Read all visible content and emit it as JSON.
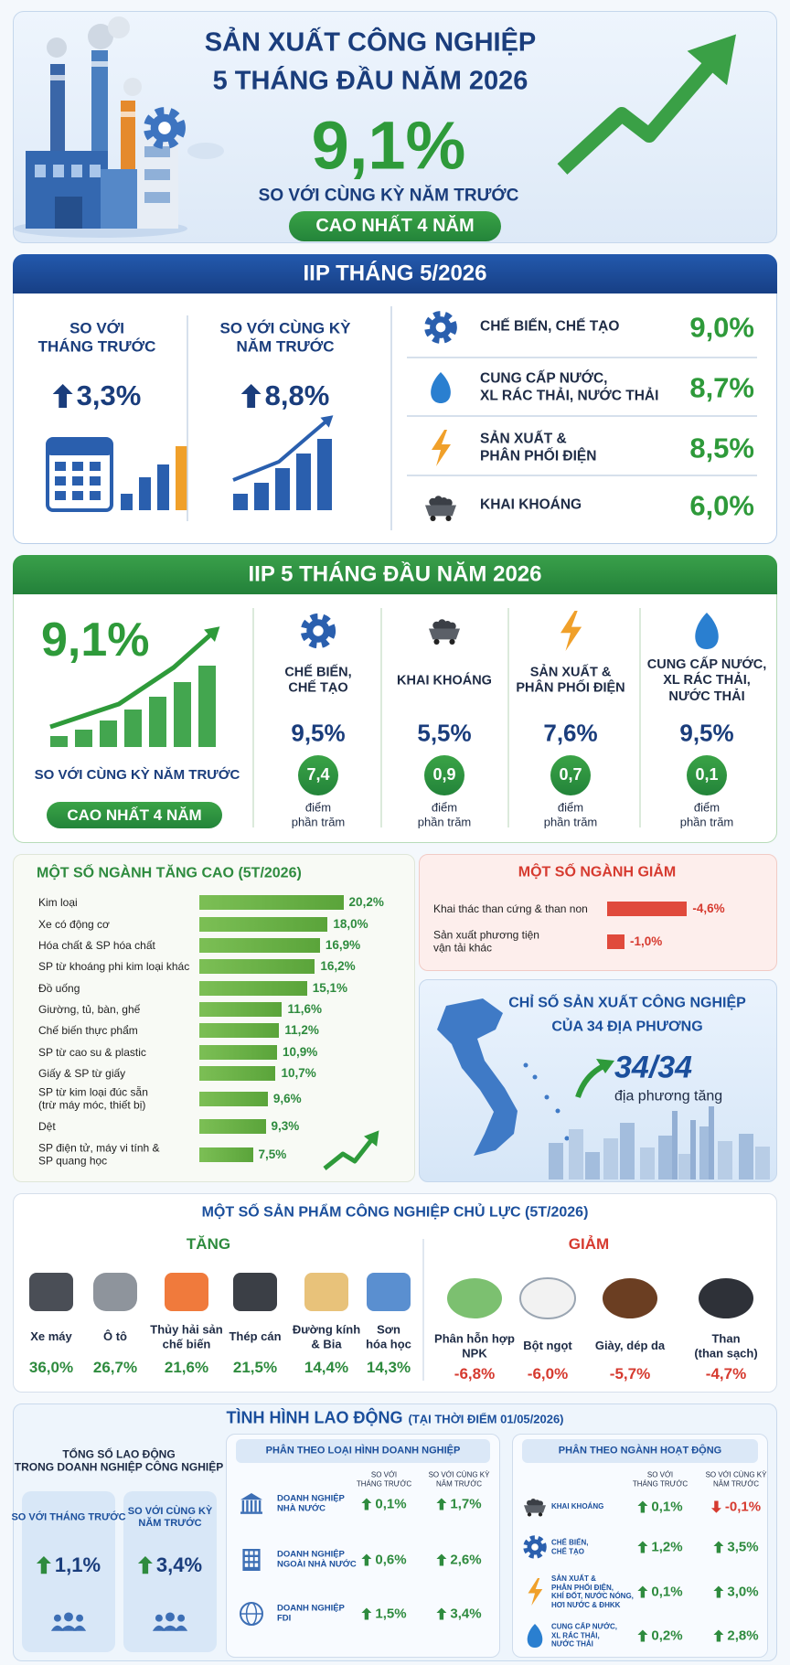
{
  "header": {
    "title_line1": "SẢN XUẤT CÔNG NGHIỆP",
    "title_line2": "5 THÁNG ĐẦU NĂM 2026",
    "growth": "9,1%",
    "comparison": "SO VỚI CÙNG KỲ NĂM TRƯỚC",
    "badge": "CAO NHẤT 4 NĂM"
  },
  "iip_may": {
    "title": "IIP THÁNG 5/2026",
    "month_on_month": {
      "label": "SO VỚI\nTHÁNG TRƯỚC",
      "value": "3,3%"
    },
    "year_on_year": {
      "label": "SO VỚI CÙNG KỲ\nNĂM TRƯỚC",
      "value": "8,8%"
    },
    "sectors": [
      {
        "name": "CHẾ BIẾN, CHẾ TẠO",
        "value": "9,0%"
      },
      {
        "name": "CUNG CẤP NƯỚC,\nXL RÁC THẢI, NƯỚC THẢI",
        "value": "8,7%"
      },
      {
        "name": "SẢN XUẤT &\nPHÂN PHỐI ĐIỆN",
        "value": "8,5%"
      },
      {
        "name": "KHAI KHOÁNG",
        "value": "6,0%"
      }
    ]
  },
  "iip_5m": {
    "title": "IIP 5 THÁNG ĐẦU NĂM 2026",
    "growth": "9,1%",
    "comparison": "SO VỚI CÙNG KỲ NĂM TRƯỚC",
    "badge": "CAO NHẤT 4 NĂM",
    "sectors": [
      {
        "name": "CHẾ BIẾN,\nCHẾ TẠO",
        "growth": "9,5%",
        "contribution": "7,4",
        "unit": "điểm\nphần trăm"
      },
      {
        "name": "KHAI KHOÁNG",
        "growth": "5,5%",
        "contribution": "0,9",
        "unit": "điểm\nphần trăm"
      },
      {
        "name": "SẢN XUẤT &\nPHÂN PHỐI ĐIỆN",
        "growth": "7,6%",
        "contribution": "0,7",
        "unit": "điểm\nphần trăm"
      },
      {
        "name": "CUNG CẤP NƯỚC,\nXL RÁC THẢI,\nNƯỚC THẢI",
        "growth": "9,5%",
        "contribution": "0,1",
        "unit": "điểm\nphần trăm"
      }
    ]
  },
  "top_growth_chart": {
    "type": "bar",
    "title": "MỘT SỐ NGÀNH TĂNG CAO (5T/2026)",
    "categories": [
      "Kim loại",
      "Xe có động cơ",
      "Hóa chất & SP hóa chất",
      "SP từ khoáng phi kim loại khác",
      "Đồ uống",
      "Giường, tủ, bàn, ghế",
      "Chế biến thực phẩm",
      "SP từ cao su & plastic",
      "Giấy & SP từ giấy",
      "SP từ kim loại đúc sẵn\n(trừ máy móc, thiết bị)",
      "Dệt",
      "SP điện tử, máy vi tính &\nSP quang học"
    ],
    "values": [
      20.2,
      18.0,
      16.9,
      16.2,
      15.1,
      11.6,
      11.2,
      10.9,
      10.7,
      9.6,
      9.3,
      7.5
    ],
    "value_labels": [
      "20,2%",
      "18,0%",
      "16,9%",
      "16,2%",
      "15,1%",
      "11,6%",
      "11,2%",
      "10,9%",
      "10,7%",
      "9,6%",
      "9,3%",
      "7,5%"
    ],
    "color": "#5aa43a"
  },
  "decline_chart": {
    "type": "bar",
    "title": "MỘT SỐ NGÀNH GIẢM",
    "categories": [
      "Khai thác than cứng & than non",
      "Sản xuất phương tiện\nvận tải khác"
    ],
    "values": [
      -4.6,
      -1.0
    ],
    "value_labels": [
      "-4,6%",
      "-1,0%"
    ],
    "color": "#e04a3c"
  },
  "provinces": {
    "title": "CHỈ SỐ SẢN XUẤT CÔNG NGHIỆP\nCỦA 34 ĐỊA PHƯƠNG",
    "value": "34/34",
    "caption": "địa phương tăng"
  },
  "products": {
    "title": "MỘT SỐ SẢN PHẨM CÔNG NGHIỆP CHỦ LỰC (5T/2026)",
    "increase": {
      "label": "TĂNG",
      "items": [
        {
          "name": "Xe máy",
          "value": "36,0%"
        },
        {
          "name": "Ô tô",
          "value": "26,7%"
        },
        {
          "name": "Thủy hải sản\nchế biến",
          "value": "21,6%"
        },
        {
          "name": "Thép cán",
          "value": "21,5%"
        },
        {
          "name": "Đường kính\n& Bia",
          "value": "14,4%"
        },
        {
          "name": "Sơn\nhóa học",
          "value": "14,3%"
        }
      ]
    },
    "decrease": {
      "label": "GIẢM",
      "items": [
        {
          "name": "Phân hỗn hợp\nNPK",
          "value": "-6,8%"
        },
        {
          "name": "Bột ngọt",
          "value": "-6,0%"
        },
        {
          "name": "Giày, dép da",
          "value": "-5,7%"
        },
        {
          "name": "Than\n(than sạch)",
          "value": "-4,7%"
        }
      ]
    }
  },
  "labour": {
    "title": "TÌNH HÌNH LAO ĐỘNG",
    "title_note": "(TẠI THỜI ĐIỂM 01/05/2026)",
    "total": {
      "label": "TỔNG SỐ LAO ĐỘNG\nTRONG DOANH NGHIỆP CÔNG NGHIỆP",
      "cards": [
        {
          "label": "SO VỚI THÁNG TRƯỚC",
          "value": "1,1%"
        },
        {
          "label": "SO VỚI CÙNG KỲ\nNĂM TRƯỚC",
          "value": "3,4%"
        }
      ]
    },
    "by_type": {
      "title": "PHÂN THEO LOẠI HÌNH DOANH NGHIỆP",
      "columns": [
        "SO VỚI\nTHÁNG TRƯỚC",
        "SO VỚI CÙNG KỲ\nNĂM TRƯỚC"
      ],
      "rows": [
        {
          "name": "DOANH NGHIỆP\nNHÀ NƯỚC",
          "mom": "0,1%",
          "yoy": "1,7%"
        },
        {
          "name": "DOANH NGHIỆP\nNGOÀI NHÀ NƯỚC",
          "mom": "0,6%",
          "yoy": "2,6%"
        },
        {
          "name": "DOANH NGHIỆP\nFDI",
          "mom": "1,5%",
          "yoy": "3,4%"
        }
      ]
    },
    "by_sector": {
      "title": "PHÂN THEO NGÀNH HOẠT ĐỘNG",
      "columns": [
        "SO VỚI\nTHÁNG TRƯỚC",
        "SO VỚI CÙNG KỲ\nNĂM TRƯỚC"
      ],
      "rows": [
        {
          "name": "KHAI KHOÁNG",
          "mom": "0,1%",
          "yoy": "-0,1%"
        },
        {
          "name": "CHẾ BIẾN,\nCHẾ TẠO",
          "mom": "1,2%",
          "yoy": "3,5%"
        },
        {
          "name": "SẢN XUẤT &\nPHÂN PHỐI ĐIỆN,\nKHÍ ĐỐT, NƯỚC NÓNG,\nHƠI NƯỚC & ĐHKK",
          "mom": "0,1%",
          "yoy": "3,0%"
        },
        {
          "name": "CUNG CẤP NƯỚC,\nXL RÁC THẢI,\nNƯỚC THẢI",
          "mom": "0,2%",
          "yoy": "2,8%"
        }
      ]
    }
  }
}
